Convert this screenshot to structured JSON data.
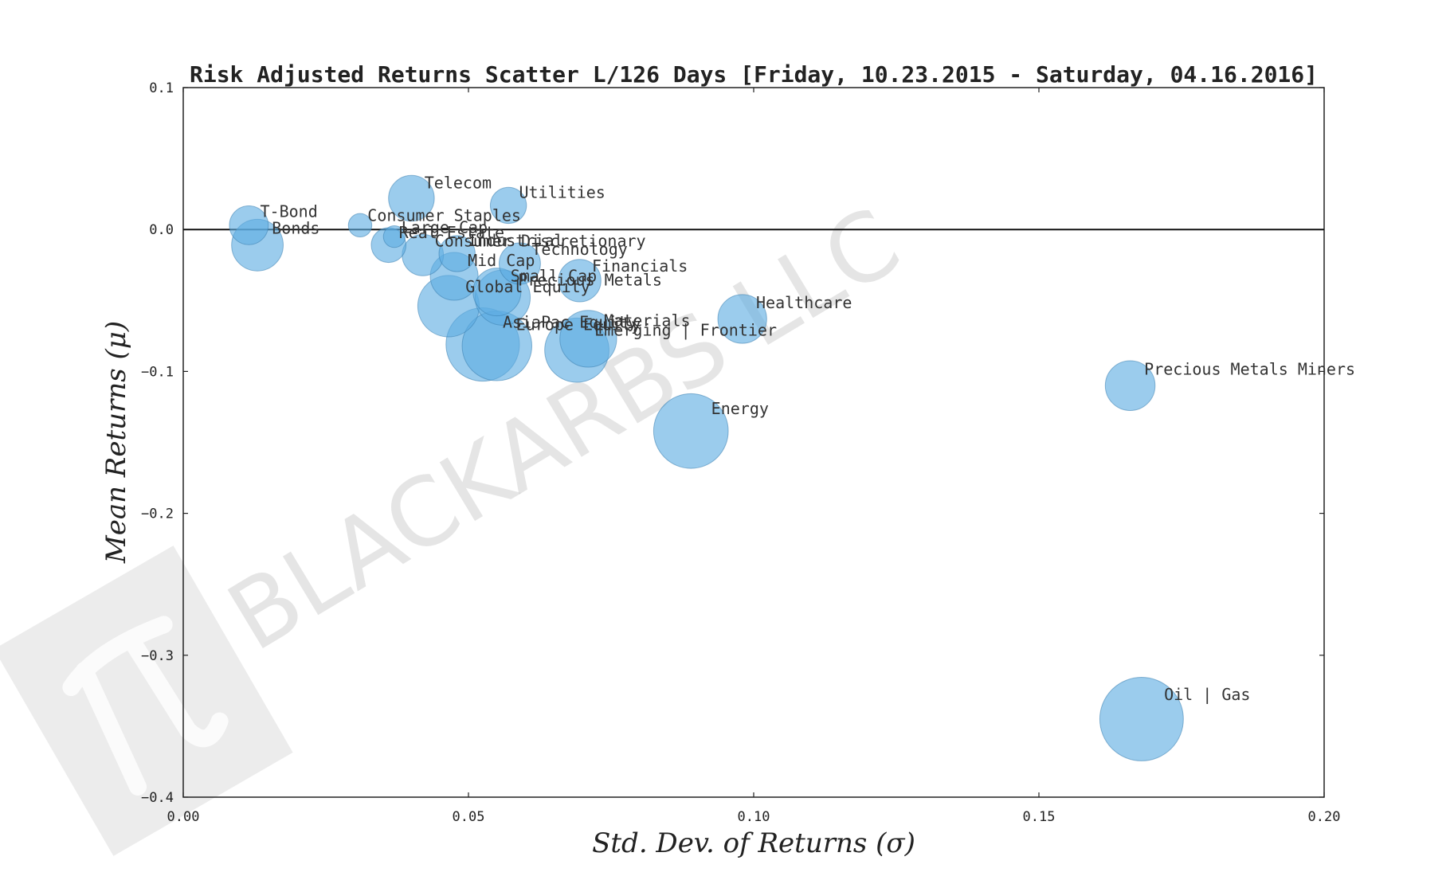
{
  "chart_data": {
    "type": "scatter",
    "title": "Risk Adjusted Returns Scatter L/126 Days [Friday, 10.23.2015 - Saturday, 04.16.2016]",
    "xlabel": "Std.  Dev.  of  Returns   (σ)",
    "ylabel": "Mean  Returns   (μ)",
    "xlim": [
      0.0,
      0.2
    ],
    "ylim": [
      -0.4,
      0.1
    ],
    "xticks": [
      "0.00",
      "0.05",
      "0.10",
      "0.15",
      "0.20"
    ],
    "yticks": [
      "0.1",
      "0.0",
      "−0.1",
      "−0.2",
      "−0.3",
      "−0.4"
    ],
    "xtick_values": [
      0.0,
      0.05,
      0.1,
      0.15,
      0.2
    ],
    "ytick_values": [
      0.1,
      0.0,
      -0.1,
      -0.2,
      -0.3,
      -0.4
    ],
    "zero_line": 0.0,
    "watermark": "BLACKARBS LLC",
    "points": [
      {
        "label": "T-Bond",
        "x": 0.0115,
        "y": 0.003,
        "size": 0.6
      },
      {
        "label": "Bonds",
        "x": 0.013,
        "y": -0.011,
        "size": 1.2
      },
      {
        "label": "Consumer Staples",
        "x": 0.031,
        "y": 0.003,
        "size": 0.15
      },
      {
        "label": "Large Cap",
        "x": 0.037,
        "y": -0.005,
        "size": 0.12
      },
      {
        "label": "Real Estate",
        "x": 0.036,
        "y": -0.011,
        "size": 0.45
      },
      {
        "label": "Telecom",
        "x": 0.04,
        "y": 0.022,
        "size": 0.9
      },
      {
        "label": "Consumer Discretionary",
        "x": 0.042,
        "y": -0.018,
        "size": 0.7
      },
      {
        "label": "Industrial",
        "x": 0.048,
        "y": -0.017,
        "size": 0.5
      },
      {
        "label": "Mid Cap",
        "x": 0.0475,
        "y": -0.033,
        "size": 1.0
      },
      {
        "label": "Global Equity",
        "x": 0.0465,
        "y": -0.054,
        "size": 1.8
      },
      {
        "label": "Utilities",
        "x": 0.057,
        "y": 0.017,
        "size": 0.5
      },
      {
        "label": "Technology",
        "x": 0.059,
        "y": -0.024,
        "size": 0.7
      },
      {
        "label": "Small Cap",
        "x": 0.055,
        "y": -0.044,
        "size": 1.0
      },
      {
        "label": "Precious Metals",
        "x": 0.056,
        "y": -0.048,
        "size": 1.4
      },
      {
        "label": "Financials",
        "x": 0.0695,
        "y": -0.036,
        "size": 0.75
      },
      {
        "label": "AsiaPac Equity",
        "x": 0.0525,
        "y": -0.081,
        "size": 2.7
      },
      {
        "label": "Europe Equity",
        "x": 0.055,
        "y": -0.082,
        "size": 2.4
      },
      {
        "label": "Emerging | Frontier",
        "x": 0.069,
        "y": -0.085,
        "size": 2.0
      },
      {
        "label": "Materials",
        "x": 0.071,
        "y": -0.077,
        "size": 1.5
      },
      {
        "label": "Healthcare",
        "x": 0.098,
        "y": -0.063,
        "size": 1.05
      },
      {
        "label": "Energy",
        "x": 0.089,
        "y": -0.142,
        "size": 2.8
      },
      {
        "label": "Precious Metals Miners",
        "x": 0.166,
        "y": -0.11,
        "size": 1.1
      },
      {
        "label": "Oil | Gas",
        "x": 0.168,
        "y": -0.345,
        "size": 3.6
      }
    ]
  }
}
